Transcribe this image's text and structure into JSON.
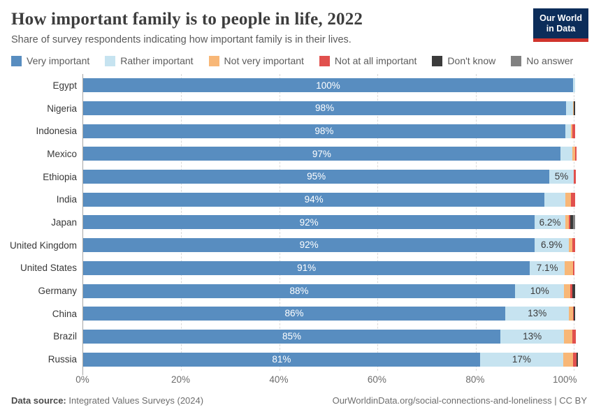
{
  "header": {
    "logo": {
      "line1": "Our World",
      "line2": "in Data",
      "bg_color": "#0c2d5a",
      "accent_color": "#d0342c"
    }
  },
  "chart_data": {
    "type": "bar",
    "stacked": true,
    "orientation": "horizontal",
    "title": "How important family is to people in life, 2022",
    "subtitle": "Share of survey respondents indicating how important family is in their lives.",
    "xlabel": "",
    "ylabel": "",
    "grid": "vertical-dashed",
    "legend_position": "top",
    "axis": {
      "max": 100.8,
      "ticks": [
        {
          "value": 0,
          "label": "0%"
        },
        {
          "value": 20,
          "label": "20%"
        },
        {
          "value": 40,
          "label": "40%"
        },
        {
          "value": 60,
          "label": "60%"
        },
        {
          "value": 80,
          "label": "80%"
        },
        {
          "value": 100,
          "label": "100%"
        }
      ]
    },
    "series": [
      {
        "key": "very-important",
        "name": "Very important",
        "color": "#588dc0"
      },
      {
        "key": "rather-important",
        "name": "Rather important",
        "color": "#c6e3f0"
      },
      {
        "key": "not-very-important",
        "name": "Not very important",
        "color": "#f8b777"
      },
      {
        "key": "not-at-all-important",
        "name": "Not at all important",
        "color": "#e1504d"
      },
      {
        "key": "dont-know",
        "name": "Don't know",
        "color": "#3b3b3b"
      },
      {
        "key": "no-answer",
        "name": "No answer",
        "color": "#818181"
      }
    ],
    "rows": [
      {
        "country": "Egypt",
        "values": [
          99.8,
          0.5,
          0,
          0,
          0,
          0
        ],
        "bar_labels": [
          "100%",
          ""
        ]
      },
      {
        "country": "Nigeria",
        "values": [
          98.4,
          1.4,
          0.2,
          0,
          0.2,
          0
        ],
        "bar_labels": [
          "98%",
          ""
        ]
      },
      {
        "country": "Indonesia",
        "values": [
          98.2,
          1.2,
          0.2,
          0.7,
          0,
          0
        ],
        "bar_labels": [
          "98%",
          ""
        ]
      },
      {
        "country": "Mexico",
        "values": [
          97.2,
          2.4,
          0.7,
          0.2,
          0,
          0
        ],
        "bar_labels": [
          "97%",
          ""
        ]
      },
      {
        "country": "Ethiopia",
        "values": [
          95,
          4.9,
          0,
          0.5,
          0,
          0
        ],
        "bar_labels": [
          "95%",
          "5%"
        ]
      },
      {
        "country": "India",
        "values": [
          94,
          4.3,
          1.1,
          0.9,
          0,
          0
        ],
        "bar_labels": [
          "94%",
          ""
        ]
      },
      {
        "country": "Japan",
        "values": [
          92,
          6.2,
          0.7,
          0.3,
          0.6,
          0.5
        ],
        "bar_labels": [
          "92%",
          "6.2%"
        ]
      },
      {
        "country": "United Kingdom",
        "values": [
          92,
          6.9,
          0.8,
          0.5,
          0,
          0
        ],
        "bar_labels": [
          "92%",
          "6.9%"
        ]
      },
      {
        "country": "United States",
        "values": [
          91,
          7.1,
          1.7,
          0.3,
          0,
          0
        ],
        "bar_labels": [
          "91%",
          "7.1%"
        ]
      },
      {
        "country": "Germany",
        "values": [
          88,
          10,
          1.2,
          0.4,
          0.7,
          0
        ],
        "bar_labels": [
          "88%",
          "10%"
        ]
      },
      {
        "country": "China",
        "values": [
          86,
          13,
          0.8,
          0.1,
          0.4,
          0
        ],
        "bar_labels": [
          "86%",
          "13%"
        ]
      },
      {
        "country": "Brazil",
        "values": [
          85,
          13,
          1.6,
          0.8,
          0,
          0
        ],
        "bar_labels": [
          "85%",
          "13%"
        ]
      },
      {
        "country": "Russia",
        "values": [
          81,
          17,
          2.0,
          0.7,
          0.3,
          0
        ],
        "bar_labels": [
          "81%",
          "17%"
        ]
      }
    ]
  },
  "footer": {
    "source_label": "Data source:",
    "source_value": "Integrated Values Surveys (2024)",
    "credit": "OurWorldinData.org/social-connections-and-loneliness | CC BY"
  }
}
